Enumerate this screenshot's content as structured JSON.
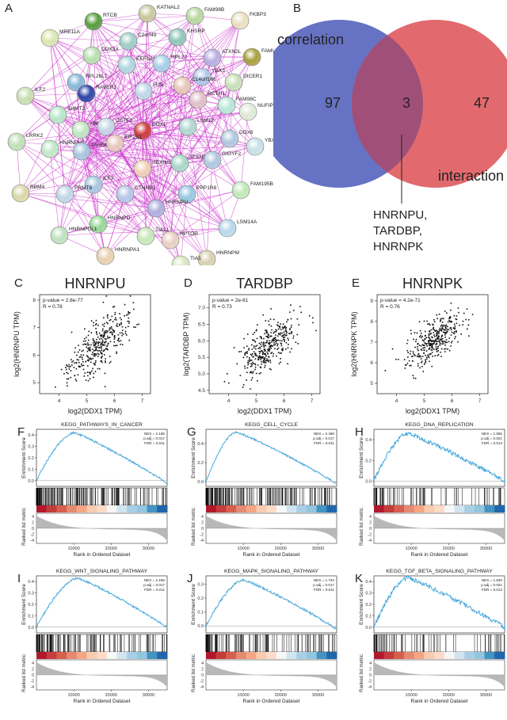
{
  "panel_letters": {
    "A": "A",
    "B": "B",
    "C": "C",
    "D": "D",
    "E": "E",
    "F": "F",
    "G": "G",
    "H": "H",
    "I": "I",
    "J": "J",
    "K": "K"
  },
  "network": {
    "nodes": [
      {
        "label": "RTCB",
        "color": "#58a040"
      },
      {
        "label": "KATNAL2",
        "color": "#c8c8a0"
      },
      {
        "label": "FAM98B",
        "color": "#b8d8a0"
      },
      {
        "label": "FKBP3",
        "color": "#e8e0c0"
      },
      {
        "label": "C2orf49",
        "color": "#a0d0c8"
      },
      {
        "label": "KHSRP",
        "color": "#90c8b8"
      },
      {
        "label": "MRE11A",
        "color": "#d8e8b0"
      },
      {
        "label": "EEF1A1",
        "color": "#b0d8e0"
      },
      {
        "label": "RPL27",
        "color": "#a8d0e8"
      },
      {
        "label": "ATXN2L",
        "color": "#b8b0e0"
      },
      {
        "label": "FAM98A",
        "color": "#a8a040"
      },
      {
        "label": "DDX3X",
        "color": "#b8e0b0"
      },
      {
        "label": "RPL26L1",
        "color": "#88b8d8"
      },
      {
        "label": "RAVER1",
        "color": "#3048a8"
      },
      {
        "label": "YBX3",
        "color": "#b0c8e8"
      },
      {
        "label": "DICER1",
        "color": "#c8e0b8"
      },
      {
        "label": "ILF2",
        "color": "#c8e0b0"
      },
      {
        "label": "FUS",
        "color": "#c0d8e8"
      },
      {
        "label": "C14orf166",
        "color": "#e8c8b8"
      },
      {
        "label": "RCTH1",
        "color": "#e0c0c8"
      },
      {
        "label": "NUFIP2",
        "color": "#e0e8d8"
      },
      {
        "label": "SHMT2",
        "color": "#b8e8c8"
      },
      {
        "label": "HNRNPK",
        "color": "#c0e8c0"
      },
      {
        "label": "CSTF2",
        "color": "#c8d8e8"
      },
      {
        "label": "DDX1",
        "color": "#d04040"
      },
      {
        "label": "LSM12",
        "color": "#b0d8d0"
      },
      {
        "label": "FAM98C",
        "color": "#b8e8d8"
      },
      {
        "label": "LRRK2",
        "color": "#c0e0b8"
      },
      {
        "label": "HNRNPH2",
        "color": "#c0e8c8"
      },
      {
        "label": "TARDBP",
        "color": "#a8c8e0"
      },
      {
        "label": "EIF2S1",
        "color": "#e8c8c0"
      },
      {
        "label": "DDX6",
        "color": "#b0c8e0"
      },
      {
        "label": "YBX1",
        "color": "#c8e0e8"
      },
      {
        "label": "HEXIM1",
        "color": "#f0d0b8"
      },
      {
        "label": "ATXN2",
        "color": "#a8d8c8"
      },
      {
        "label": "GIGYF2",
        "color": "#b0c8e0"
      },
      {
        "label": "RBM4",
        "color": "#d8d8a8"
      },
      {
        "label": "ILF3",
        "color": "#a8c8e0"
      },
      {
        "label": "PRMT8",
        "color": "#c0d8e8"
      },
      {
        "label": "CTNNB1",
        "color": "#b8c8e8"
      },
      {
        "label": "PPP1R8",
        "color": "#98c8e0"
      },
      {
        "label": "FAM195B",
        "color": "#c0e8b8"
      },
      {
        "label": "HNRNPU",
        "color": "#b0b0e0"
      },
      {
        "label": "HNRNPD",
        "color": "#98d898"
      },
      {
        "label": "LSM14A",
        "color": "#b8d8e8"
      },
      {
        "label": "HNRNPUL1",
        "color": "#c0e0c0"
      },
      {
        "label": "TIAL1",
        "color": "#c8e8b8"
      },
      {
        "label": "RPTOR",
        "color": "#e8d0c0"
      },
      {
        "label": "HNRNPM",
        "color": "#d8d0b0"
      },
      {
        "label": "HNRNPA1",
        "color": "#e8d0b0"
      },
      {
        "label": "TIA1",
        "color": "#d8e8c0"
      }
    ],
    "edge_color": "#cc33cc"
  },
  "venn": {
    "left_label": "correlation",
    "right_label": "interaction",
    "left_only": "97",
    "overlap": "3",
    "right_only": "47",
    "overlap_genes": [
      "HNRNPU,",
      "TARDBP,",
      "HNRNPK"
    ],
    "left_color": "#6673c4",
    "right_color": "#e26a6e",
    "overlap_color": "#a04f78"
  },
  "scatter_panels": [
    {
      "letter": "C",
      "title": "HNRNPU",
      "pvalue": "p-value = 2.8e-77",
      "r": "R = 0.78",
      "xlabel": "log2(DDX1 TPM)",
      "ylabel": "log2(HNRNPU TPM)",
      "xticks": [
        "4",
        "5",
        "6",
        "7"
      ],
      "yticks": [
        "5",
        "6",
        "7",
        "8"
      ],
      "chart_data": {
        "type": "scatter",
        "xlim": [
          3.3,
          7.3
        ],
        "ylim": [
          4.6,
          8.2
        ],
        "slope": 0.75,
        "intercept": 2.3,
        "n": 360,
        "sd_x": 0.55,
        "mean_x": 5.4,
        "noise": 0.45
      }
    },
    {
      "letter": "D",
      "title": "TARDBP",
      "pvalue": "p-value = 2e-61",
      "r": "R = 0.73",
      "xlabel": "log2(DDX1 TPM)",
      "ylabel": "log2(TARDBP TPM)",
      "xticks": [
        "4",
        "5",
        "6",
        "7"
      ],
      "yticks": [
        "4.5",
        "5.0",
        "5.5",
        "6.0",
        "6.5",
        "7.0"
      ],
      "chart_data": {
        "type": "scatter",
        "xlim": [
          3.3,
          7.3
        ],
        "ylim": [
          4.4,
          7.4
        ],
        "slope": 0.55,
        "intercept": 2.85,
        "n": 360,
        "sd_x": 0.55,
        "mean_x": 5.4,
        "noise": 0.35
      }
    },
    {
      "letter": "E",
      "title": "HNRNPK",
      "pvalue": "p-value = 4.2e-71",
      "r": "R = 0.76",
      "xlabel": "log2(DDX1 TPM)",
      "ylabel": "log2(HNRNPK TPM)",
      "xticks": [
        "4",
        "5",
        "6",
        "7"
      ],
      "yticks": [
        "5",
        "6",
        "7",
        "8",
        "9"
      ],
      "chart_data": {
        "type": "scatter",
        "xlim": [
          3.3,
          7.3
        ],
        "ylim": [
          4.5,
          9.3
        ],
        "slope": 0.9,
        "intercept": 2.3,
        "n": 360,
        "sd_x": 0.55,
        "mean_x": 5.4,
        "noise": 0.5
      }
    }
  ],
  "gsea_panels": [
    {
      "letter": "F",
      "title": "KEGG_PATHWAYS_IN_CANCER",
      "nes": "NES = 2.186",
      "padj": "p.adj = 0.017",
      "fdr": "FDR = 0.011",
      "chart_data": {
        "type": "line",
        "peak_x": 10000,
        "peak": 0.42,
        "end": -0.02,
        "start": 0.0,
        "hit_density": "dense",
        "ylim": [
          -0.05,
          0.45
        ],
        "yticks": [
          "0.4",
          "0.3",
          "0.2",
          "0.1",
          "0.0"
        ]
      }
    },
    {
      "letter": "G",
      "title": "KEGG_CELL_CYCLE",
      "nes": "NES = 2.468",
      "padj": "p.adj = 0.017",
      "fdr": "FDR = 0.011",
      "chart_data": {
        "type": "line",
        "peak_x": 8000,
        "peak": 0.52,
        "end": -0.02,
        "start": 0.0,
        "hit_density": "dense",
        "ylim": [
          -0.05,
          0.55
        ],
        "yticks": [
          "0.4",
          "0.2",
          "0.0"
        ]
      }
    },
    {
      "letter": "H",
      "title": "KEGG_DNA_REPLICATION",
      "nes": "NES = 1.855",
      "padj": "p.adj = 0.021",
      "fdr": "FDR = 0.013",
      "chart_data": {
        "type": "line",
        "peak_x": 9000,
        "peak": 0.46,
        "end": 0.0,
        "start": 0.0,
        "hit_density": "sparse",
        "ylim": [
          -0.05,
          0.5
        ],
        "yticks": [
          "0.4",
          "0.2",
          "0.0"
        ]
      }
    },
    {
      "letter": "I",
      "title": "KEGG_WNT_SIGNALING_PATHWAY",
      "nes": "NES = 2.166",
      "padj": "p.adj = 0.017",
      "fdr": "FDR = 0.011",
      "chart_data": {
        "type": "line",
        "peak_x": 11000,
        "peak": 0.43,
        "end": 0.0,
        "start": 0.0,
        "hit_density": "medium",
        "ylim": [
          -0.05,
          0.45
        ],
        "yticks": [
          "0.4",
          "0.3",
          "0.2",
          "0.1",
          "0.0"
        ]
      }
    },
    {
      "letter": "J",
      "title": "KEGG_MAPK_SIGNALING_PATHWAY",
      "nes": "NES = 1.734",
      "padj": "p.adj = 0.017",
      "fdr": "FDR = 0.011",
      "chart_data": {
        "type": "line",
        "peak_x": 10000,
        "peak": 0.33,
        "end": -0.02,
        "start": 0.0,
        "hit_density": "medium",
        "ylim": [
          -0.05,
          0.36
        ],
        "yticks": [
          "0.3",
          "0.2",
          "0.1",
          "0.0"
        ]
      }
    },
    {
      "letter": "K",
      "title": "KEGG_TGF_BETA_SIGNALING_PATHWAY",
      "nes": "NES = 1.830",
      "padj": "p.adj = 0.021",
      "fdr": "FDR = 0.013",
      "chart_data": {
        "type": "line",
        "peak_x": 9000,
        "peak": 0.43,
        "end": 0.0,
        "start": 0.0,
        "hit_density": "sparse",
        "ylim": [
          -0.05,
          0.45
        ],
        "yticks": [
          "0.4",
          "0.3",
          "0.2",
          "0.1",
          "0.0"
        ]
      }
    }
  ],
  "gsea_common": {
    "ylabel_top": "Enrichment Score",
    "ylabel_bottom": "Ranked list metric",
    "xlabel": "Rank in Ordered Dataset",
    "xticks": [
      "10000",
      "20000",
      "30000"
    ],
    "metric_yticks": [
      "4",
      "2",
      "0",
      "-2",
      "-4"
    ],
    "line_color": "#49a8dc"
  }
}
